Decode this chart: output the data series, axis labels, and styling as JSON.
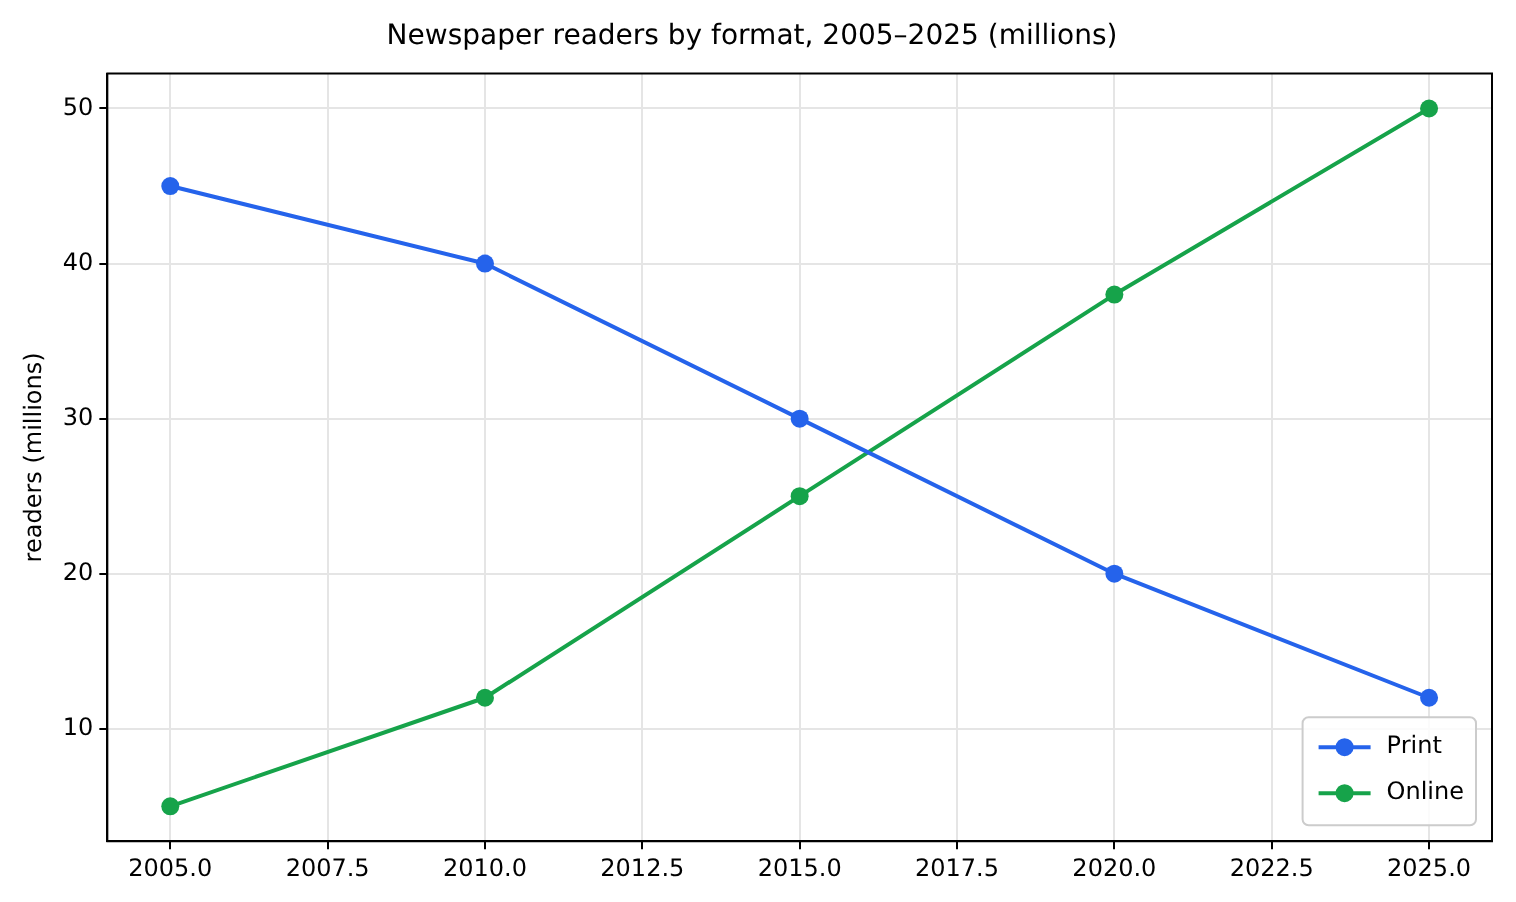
{
  "chart_data": {
    "type": "line",
    "title": "Newspaper readers by format, 2005–2025 (millions)",
    "ylabel": "readers (millions)",
    "x": [
      2005,
      2010,
      2015,
      2020,
      2025
    ],
    "series": [
      {
        "name": "Print",
        "color": "#2563eb",
        "values": [
          45,
          40,
          30,
          20,
          12
        ]
      },
      {
        "name": "Online",
        "color": "#16a34a",
        "values": [
          5,
          12,
          25,
          38,
          50
        ]
      }
    ],
    "xlim": [
      2004,
      2026
    ],
    "xticks": [
      {
        "value": 2005,
        "label": "2005.0"
      },
      {
        "value": 2007.5,
        "label": "2007.5"
      },
      {
        "value": 2010,
        "label": "2010.0"
      },
      {
        "value": 2012.5,
        "label": "2012.5"
      },
      {
        "value": 2015,
        "label": "2015.0"
      },
      {
        "value": 2017.5,
        "label": "2017.5"
      },
      {
        "value": 2020,
        "label": "2020.0"
      },
      {
        "value": 2022.5,
        "label": "2022.5"
      },
      {
        "value": 2025,
        "label": "2025.0"
      }
    ],
    "ylim": [
      2.75,
      52.25
    ],
    "yticks": [
      10,
      20,
      30,
      40,
      50
    ],
    "grid": true,
    "legend": "bottom right",
    "marker": "circle",
    "line_style": "solid"
  }
}
